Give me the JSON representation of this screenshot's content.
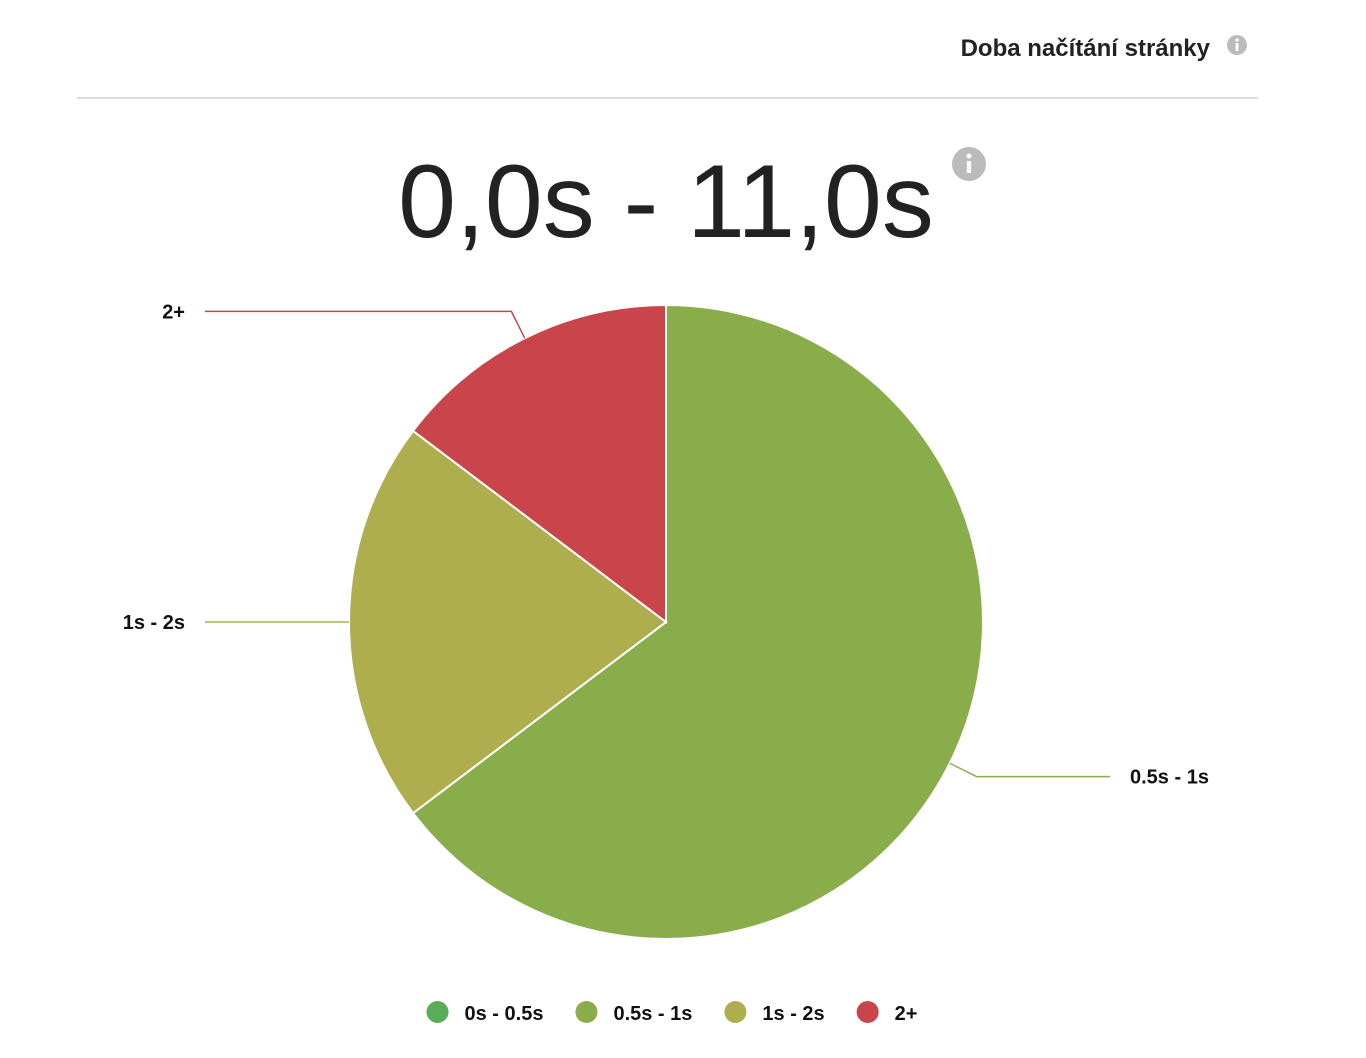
{
  "header": {
    "title": "Doba načítání stránky"
  },
  "chart_data": {
    "type": "pie",
    "title": "0,0s - 11,0s",
    "categories": [
      "0s - 0.5s",
      "0.5s - 1s",
      "1s - 2s",
      "2+"
    ],
    "values": [
      0,
      64.7,
      20.6,
      14.7
    ],
    "colors": [
      "#5aac58",
      "#8aad4b",
      "#afae4e",
      "#c9444b"
    ],
    "legend": "bottom"
  }
}
